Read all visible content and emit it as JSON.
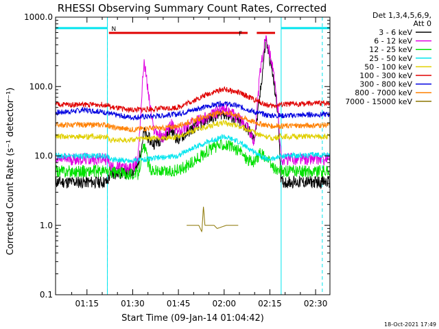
{
  "chart_data": {
    "type": "line",
    "title": "RHESSI Observing Summary Count Rates, Corrected",
    "ylabel": "Corrected Count Rate (s⁻¹ detector⁻¹)",
    "xlabel": "Start Time (09-Jan-14 01:04:42)",
    "y_scale": "log",
    "ylim": [
      0.1,
      1000.0
    ],
    "y_ticks": [
      "1000.0",
      "100.0",
      "10.0",
      "1.0",
      "0.1"
    ],
    "xlim_min": [
      0,
      90
    ],
    "x_ticks": [
      {
        "label": "01:15",
        "min": 10.3
      },
      {
        "label": "01:30",
        "min": 25.3
      },
      {
        "label": "01:45",
        "min": 40.3
      },
      {
        "label": "02:00",
        "min": 55.3
      },
      {
        "label": "02:15",
        "min": 70.3
      },
      {
        "label": "02:30",
        "min": 85.3
      }
    ],
    "detector_info": [
      "Det 1,3,4,5,6,9,",
      "Att 0"
    ],
    "timestamp": "18-Oct-2021 17:49",
    "flags": [
      {
        "label": "N",
        "color": "#00e5ee",
        "segments": [
          [
            0,
            17
          ],
          [
            74,
            90
          ]
        ]
      },
      {
        "label": "F",
        "color": "#e00000",
        "segments": [
          [
            17.5,
            63
          ],
          [
            66,
            72
          ]
        ]
      }
    ],
    "night_lines_min": [
      17,
      74
    ],
    "night_dashed_min": [
      17,
      87.5
    ],
    "series": [
      {
        "name": "3 - 6 keV",
        "color": "#000000",
        "points": [
          [
            0,
            4.2
          ],
          [
            17,
            4.2
          ],
          [
            18,
            5.5
          ],
          [
            25,
            5.8
          ],
          [
            27,
            7
          ],
          [
            29,
            22
          ],
          [
            32,
            15
          ],
          [
            35,
            18
          ],
          [
            38,
            24
          ],
          [
            40,
            17
          ],
          [
            45,
            25
          ],
          [
            50,
            34
          ],
          [
            55,
            42
          ],
          [
            60,
            32
          ],
          [
            63,
            25
          ],
          [
            65,
            17
          ],
          [
            66,
            30
          ],
          [
            67,
            70
          ],
          [
            69,
            480
          ],
          [
            71,
            170
          ],
          [
            73,
            40
          ],
          [
            74,
            4.2
          ],
          [
            90,
            4.2
          ]
        ]
      },
      {
        "name": "6 - 12 keV",
        "color": "#e000e0",
        "points": [
          [
            0,
            9
          ],
          [
            17,
            9
          ],
          [
            18,
            7
          ],
          [
            25,
            6.5
          ],
          [
            27,
            9
          ],
          [
            29,
            240
          ],
          [
            32,
            25
          ],
          [
            35,
            18
          ],
          [
            38,
            28
          ],
          [
            40,
            22
          ],
          [
            45,
            30
          ],
          [
            50,
            36
          ],
          [
            55,
            48
          ],
          [
            60,
            35
          ],
          [
            63,
            28
          ],
          [
            65,
            15
          ],
          [
            66,
            40
          ],
          [
            67,
            150
          ],
          [
            69,
            560
          ],
          [
            71,
            220
          ],
          [
            73,
            45
          ],
          [
            74,
            9
          ],
          [
            90,
            9
          ]
        ]
      },
      {
        "name": "12 - 25 keV",
        "color": "#00e000",
        "points": [
          [
            0,
            6
          ],
          [
            17,
            6
          ],
          [
            18,
            5.8
          ],
          [
            25,
            5.5
          ],
          [
            27,
            5.5
          ],
          [
            29,
            14
          ],
          [
            31,
            6.5
          ],
          [
            35,
            5.8
          ],
          [
            38,
            6
          ],
          [
            40,
            6.2
          ],
          [
            45,
            8
          ],
          [
            50,
            12
          ],
          [
            55,
            15
          ],
          [
            60,
            12
          ],
          [
            63,
            9
          ],
          [
            65,
            8
          ],
          [
            66,
            9
          ],
          [
            67,
            11
          ],
          [
            69,
            9.5
          ],
          [
            71,
            7
          ],
          [
            73,
            6
          ],
          [
            74,
            6
          ],
          [
            90,
            6
          ]
        ]
      },
      {
        "name": "25 - 50 keV",
        "color": "#00e5ee",
        "points": [
          [
            0,
            10
          ],
          [
            17,
            10
          ],
          [
            18,
            9
          ],
          [
            25,
            8.5
          ],
          [
            30,
            9
          ],
          [
            35,
            9.5
          ],
          [
            40,
            10
          ],
          [
            45,
            13
          ],
          [
            50,
            16
          ],
          [
            55,
            19
          ],
          [
            60,
            16
          ],
          [
            63,
            13
          ],
          [
            66,
            11
          ],
          [
            69,
            9
          ],
          [
            71,
            9
          ],
          [
            74,
            10
          ],
          [
            90,
            10.5
          ]
        ]
      },
      {
        "name": "50 - 100 keV",
        "color": "#e0d000",
        "points": [
          [
            0,
            19
          ],
          [
            17,
            19
          ],
          [
            18,
            17
          ],
          [
            25,
            17
          ],
          [
            30,
            18
          ],
          [
            35,
            18
          ],
          [
            40,
            19
          ],
          [
            45,
            23
          ],
          [
            50,
            27
          ],
          [
            55,
            30
          ],
          [
            60,
            27
          ],
          [
            63,
            24
          ],
          [
            66,
            21
          ],
          [
            69,
            19
          ],
          [
            71,
            18
          ],
          [
            74,
            19
          ],
          [
            90,
            19
          ]
        ]
      },
      {
        "name": "100 - 300 keV",
        "color": "#e00000",
        "points": [
          [
            0,
            55
          ],
          [
            17,
            55
          ],
          [
            18,
            50
          ],
          [
            25,
            46
          ],
          [
            30,
            47
          ],
          [
            35,
            48
          ],
          [
            40,
            50
          ],
          [
            45,
            62
          ],
          [
            50,
            78
          ],
          [
            55,
            92
          ],
          [
            60,
            82
          ],
          [
            63,
            72
          ],
          [
            66,
            62
          ],
          [
            69,
            55
          ],
          [
            71,
            52
          ],
          [
            74,
            55
          ],
          [
            90,
            58
          ]
        ]
      },
      {
        "name": "300 - 800 keV",
        "color": "#0000e0",
        "points": [
          [
            0,
            42
          ],
          [
            10,
            46
          ],
          [
            17,
            42
          ],
          [
            18,
            40
          ],
          [
            25,
            36
          ],
          [
            30,
            37
          ],
          [
            35,
            38
          ],
          [
            40,
            40
          ],
          [
            45,
            46
          ],
          [
            50,
            52
          ],
          [
            55,
            57
          ],
          [
            60,
            52
          ],
          [
            63,
            47
          ],
          [
            66,
            42
          ],
          [
            69,
            39
          ],
          [
            71,
            38
          ],
          [
            74,
            38
          ],
          [
            90,
            40
          ]
        ]
      },
      {
        "name": "800 - 7000 keV",
        "color": "#ff8000",
        "points": [
          [
            0,
            28
          ],
          [
            17,
            28
          ],
          [
            18,
            26
          ],
          [
            25,
            24
          ],
          [
            30,
            25
          ],
          [
            35,
            25
          ],
          [
            40,
            27
          ],
          [
            45,
            32
          ],
          [
            50,
            38
          ],
          [
            55,
            43
          ],
          [
            60,
            38
          ],
          [
            63,
            33
          ],
          [
            66,
            30
          ],
          [
            69,
            28
          ],
          [
            71,
            27
          ],
          [
            74,
            27
          ],
          [
            90,
            28
          ]
        ]
      },
      {
        "name": "7000 - 15000 keV",
        "color": "#8b7500",
        "points": [
          [
            43,
            1.0
          ],
          [
            47,
            1.0
          ],
          [
            48,
            0.8
          ],
          [
            48.5,
            1.9
          ],
          [
            49,
            1.0
          ],
          [
            52,
            1.0
          ],
          [
            53,
            0.9
          ],
          [
            56,
            1.0
          ],
          [
            60,
            1.0
          ]
        ]
      }
    ]
  }
}
